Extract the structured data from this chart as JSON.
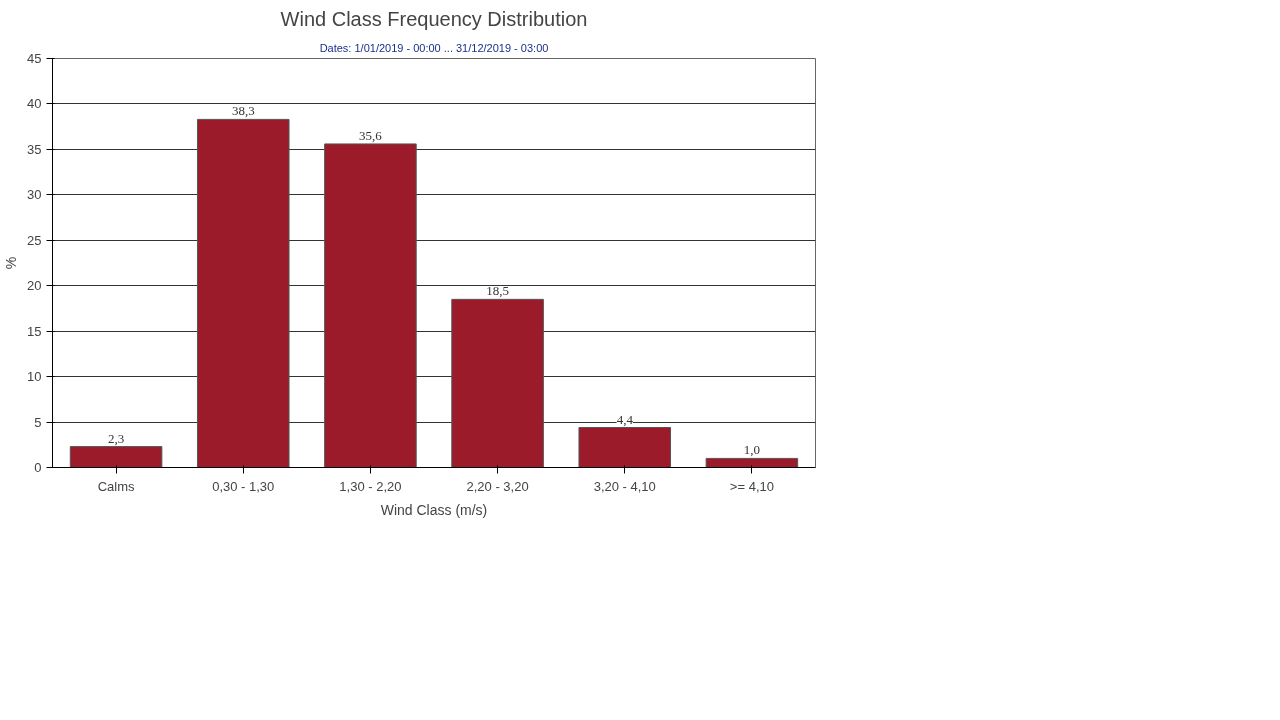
{
  "chart_data": {
    "type": "bar",
    "title": "Wind Class Frequency Distribution",
    "subtitle": "Dates: 1/01/2019 - 00:00 ... 31/12/2019 - 03:00",
    "xlabel": "Wind Class (m/s)",
    "ylabel": "%",
    "categories": [
      "Calms",
      "0,30 - 1,30",
      "1,30 - 2,20",
      "2,20 - 3,20",
      "3,20 - 4,10",
      ">= 4,10"
    ],
    "values": [
      2.3,
      38.3,
      35.6,
      18.5,
      4.4,
      1.0
    ],
    "value_labels": [
      "2,3",
      "38,3",
      "35,6",
      "18,5",
      "4,4",
      "1,0"
    ],
    "color": "#9b1b2a",
    "ylim": [
      0,
      45
    ],
    "yticks": [
      0,
      5,
      10,
      15,
      20,
      25,
      30,
      35,
      40,
      45
    ],
    "grid": "y"
  }
}
